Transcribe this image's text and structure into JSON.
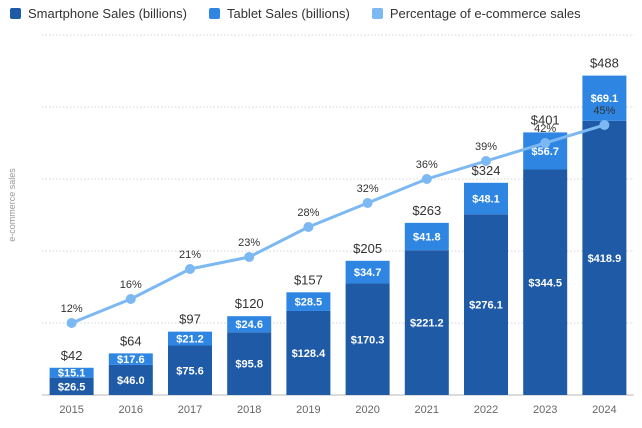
{
  "chart_data": {
    "type": "bar",
    "stacked": true,
    "categories": [
      "2015",
      "2016",
      "2017",
      "2018",
      "2019",
      "2020",
      "2021",
      "2022",
      "2023",
      "2024"
    ],
    "series": [
      {
        "name": "Smartphone Sales (billions)",
        "type": "bar",
        "color": "#1f5aa6",
        "values": [
          26.5,
          46.0,
          75.6,
          95.8,
          128.4,
          170.3,
          221.2,
          276.1,
          344.5,
          418.9
        ],
        "labels": [
          "$26.5",
          "$46.0",
          "$75.6",
          "$95.8",
          "$128.4",
          "$170.3",
          "$221.2",
          "$276.1",
          "$344.5",
          "$418.9"
        ]
      },
      {
        "name": "Tablet Sales (billions)",
        "type": "bar",
        "color": "#2f86e2",
        "values": [
          15.1,
          17.6,
          21.2,
          24.6,
          28.5,
          34.7,
          41.8,
          48.1,
          56.7,
          69.1
        ],
        "labels": [
          "$15.1",
          "$17.6",
          "$21.2",
          "$24.6",
          "$28.5",
          "$34.7",
          "$41.8",
          "$48.1",
          "$56.7",
          "$69.1"
        ]
      },
      {
        "name": "Percentage of e-commerce sales",
        "type": "line",
        "color": "#7cb8f2",
        "values": [
          12,
          16,
          21,
          23,
          28,
          32,
          36,
          39,
          42,
          45
        ],
        "labels": [
          "12%",
          "16%",
          "21%",
          "23%",
          "28%",
          "32%",
          "36%",
          "39%",
          "42%",
          "45%"
        ]
      }
    ],
    "totals": [
      42,
      64,
      97,
      120,
      157,
      205,
      263,
      324,
      401,
      488
    ],
    "total_labels": [
      "$42",
      "$64",
      "$97",
      "$120",
      "$157",
      "$205",
      "$263",
      "$324",
      "$401",
      "$488"
    ],
    "ylabel": "e-commerce sales",
    "ylim": [
      0,
      550
    ],
    "y2lim": [
      0,
      60
    ],
    "grid": true,
    "legend_position": "top-left"
  }
}
